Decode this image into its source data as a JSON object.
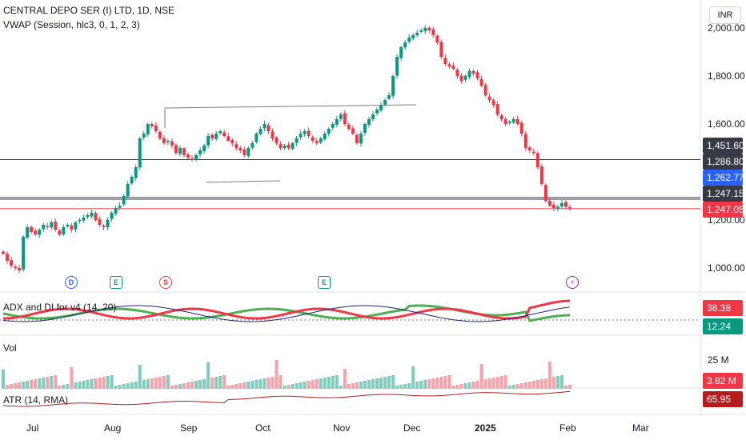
{
  "header": {
    "symbol_line": "CENTRAL DEPO SER (I) LTD, 1D, NSE",
    "indicator_line": "VWAP (Session, hlc3, 0, 1, 2, 3)",
    "currency": "INR"
  },
  "price_axis": {
    "ticks": [
      "2,000.00",
      "1,800.00",
      "1,600.00",
      "1,200.00",
      "1,000.00"
    ],
    "badges": [
      {
        "text": "1,451.60",
        "color": "#363a45"
      },
      {
        "text": "1,286.80",
        "color": "#363a45"
      },
      {
        "text": "1,262.77",
        "color": "#2962ff"
      },
      {
        "text": "1,247.15",
        "color": "#363a45"
      },
      {
        "text": "1,247.05",
        "color": "#f23645"
      }
    ]
  },
  "time_axis": {
    "labels": [
      "Jul",
      "Aug",
      "Sep",
      "Oct",
      "Nov",
      "Dec",
      "2025",
      "Feb",
      "Mar"
    ]
  },
  "events": [
    {
      "letter": "D",
      "color": "#2962ff"
    },
    {
      "letter": "E",
      "color": "#089981"
    },
    {
      "letter": "S",
      "color": "#f23645"
    },
    {
      "letter": "E",
      "color": "#089981"
    },
    {
      "letter": "⚡",
      "color": "#9c27b0"
    }
  ],
  "adx_pane": {
    "title": "ADX and DI for v4 (14, 20)",
    "values": [
      {
        "text": "38.38",
        "color": "#f23645"
      },
      {
        "text": "12.24",
        "color": "#089981"
      }
    ]
  },
  "vol_pane": {
    "title": "Vol",
    "tick": "25 M",
    "value": {
      "text": "3.82 M",
      "color": "#f23645"
    }
  },
  "atr_pane": {
    "title": "ATR (14, RMA)",
    "value": {
      "text": "65.95",
      "color": "#b71c1c"
    }
  },
  "chart_data": {
    "type": "candlestick",
    "title": "CENTRAL DEPO SER (I) LTD, 1D, NSE",
    "y_range": [
      950,
      2050
    ],
    "horizontal_levels": [
      1451.6,
      1286.8,
      1247.15,
      1247.05
    ],
    "close_series": [
      1060,
      1030,
      1010,
      1000,
      990,
      1130,
      1170,
      1150,
      1140,
      1160,
      1180,
      1170,
      1190,
      1160,
      1140,
      1170,
      1180,
      1160,
      1190,
      1200,
      1210,
      1220,
      1230,
      1200,
      1180,
      1170,
      1200,
      1230,
      1250,
      1260,
      1300,
      1350,
      1380,
      1420,
      1540,
      1560,
      1600,
      1590,
      1570,
      1540,
      1520,
      1530,
      1510,
      1480,
      1500,
      1470,
      1460,
      1450,
      1470,
      1490,
      1510,
      1550,
      1540,
      1560,
      1570,
      1550,
      1530,
      1520,
      1500,
      1490,
      1470,
      1500,
      1520,
      1560,
      1580,
      1600,
      1570,
      1540,
      1520,
      1500,
      1510,
      1500,
      1520,
      1540,
      1560,
      1570,
      1550,
      1530,
      1520,
      1540,
      1560,
      1580,
      1600,
      1620,
      1640,
      1600,
      1580,
      1560,
      1520,
      1560,
      1600,
      1620,
      1640,
      1660,
      1680,
      1700,
      1720,
      1800,
      1880,
      1920,
      1940,
      1960,
      1970,
      1980,
      1990,
      2000,
      1990,
      1970,
      1940,
      1880,
      1850,
      1840,
      1830,
      1800,
      1780,
      1800,
      1820,
      1810,
      1790,
      1760,
      1720,
      1700,
      1680,
      1640,
      1620,
      1600,
      1610,
      1620,
      1600,
      1560,
      1500,
      1490,
      1480,
      1420,
      1350,
      1280,
      1260,
      1250,
      1255,
      1270,
      1255,
      1247
    ],
    "vwap_series": [],
    "adx": {
      "plus_di": 12.24,
      "minus_di": 38.38
    },
    "volume": {
      "last": "3.82 M"
    },
    "atr": {
      "last": 65.95
    }
  }
}
